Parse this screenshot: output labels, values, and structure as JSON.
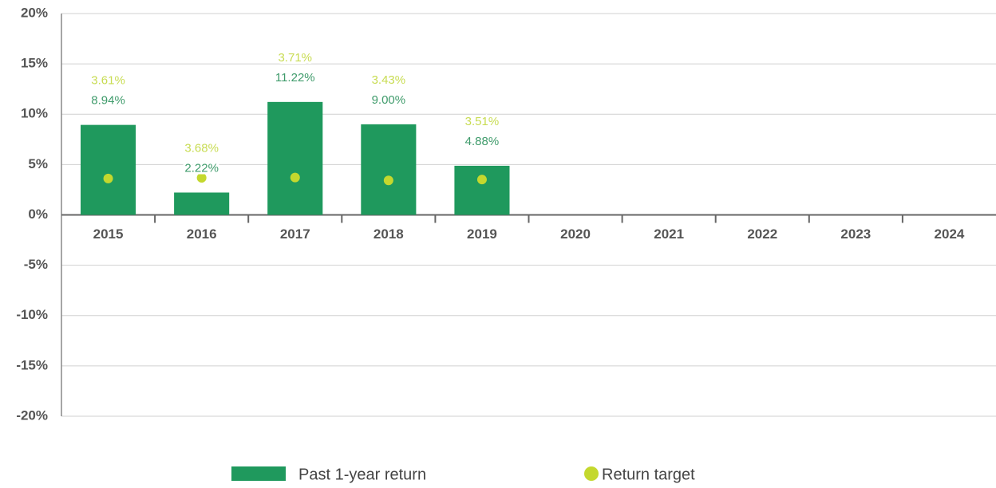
{
  "chart_data": {
    "type": "bar",
    "categories": [
      "2015",
      "2016",
      "2017",
      "2018",
      "2019",
      "2020",
      "2021",
      "2022",
      "2023",
      "2024"
    ],
    "series": [
      {
        "name": "Past 1-year return",
        "type": "bar",
        "color": "#1f995d",
        "values": [
          8.94,
          2.22,
          11.22,
          9.0,
          4.88,
          null,
          null,
          null,
          null,
          null
        ],
        "value_labels": [
          "8.94%",
          "2.22%",
          "11.22%",
          "9.00%",
          "4.88%",
          null,
          null,
          null,
          null,
          null
        ],
        "label_color": "#3f9b6b"
      },
      {
        "name": "Return target",
        "type": "dot",
        "color": "#c4d82e",
        "values": [
          3.61,
          3.68,
          3.71,
          3.43,
          3.51,
          null,
          null,
          null,
          null,
          null
        ],
        "value_labels": [
          "3.61%",
          "3.68%",
          "3.71%",
          "3.43%",
          "3.51%",
          null,
          null,
          null,
          null,
          null
        ],
        "label_color": "#c8dc52"
      }
    ],
    "ylim": [
      -20,
      20
    ],
    "yticks": [
      {
        "value": -20,
        "label": "-20%"
      },
      {
        "value": -15,
        "label": "-15%"
      },
      {
        "value": -10,
        "label": "-10%"
      },
      {
        "value": -5,
        "label": "-5%"
      },
      {
        "value": 0,
        "label": "0%"
      },
      {
        "value": 5,
        "label": "5%"
      },
      {
        "value": 10,
        "label": "10%"
      },
      {
        "value": 15,
        "label": "15%"
      },
      {
        "value": 20,
        "label": "20%"
      }
    ],
    "grid": true
  }
}
